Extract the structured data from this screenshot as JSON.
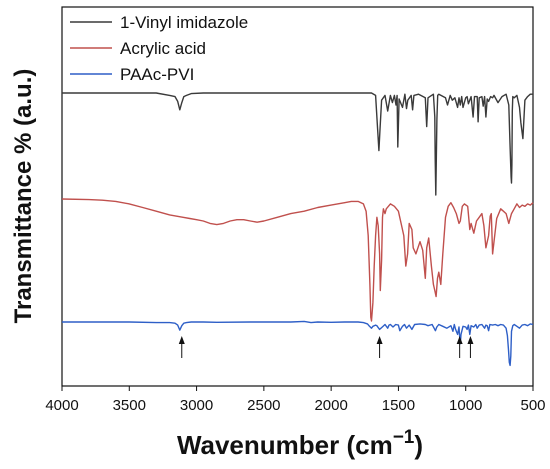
{
  "chart_data": {
    "type": "line",
    "title": "",
    "xlabel": "Wavenumber (cm",
    "xlabel_superscript": "−1",
    "xlabel_close": ")",
    "ylabel": "Transmittance % (a.u.)",
    "xlim": [
      4000,
      500
    ],
    "x_reversed": true,
    "x_ticks": [
      4000,
      3500,
      3000,
      2500,
      2000,
      1500,
      1000,
      500
    ],
    "y_ticks_shown": false,
    "grid": false,
    "legend_position": "top-left",
    "series": [
      {
        "name": "1-Vinyl imidazole",
        "color": "#3a3a3a",
        "baseline": 100,
        "x": [
          4000,
          3300,
          3200,
          3160,
          3140,
          3125,
          3110,
          3095,
          3075,
          3040,
          2950,
          2800,
          2200,
          2000,
          1800,
          1700,
          1670,
          1655,
          1645,
          1638,
          1625,
          1600,
          1580,
          1560,
          1545,
          1530,
          1518,
          1510,
          1505,
          1495,
          1470,
          1452,
          1440,
          1430,
          1405,
          1395,
          1385,
          1350,
          1300,
          1290,
          1280,
          1240,
          1230,
          1227,
          1222,
          1214,
          1208,
          1200,
          1150,
          1135,
          1115,
          1100,
          1080,
          1060,
          1050,
          1040,
          1030,
          1020,
          1000,
          990,
          980,
          960,
          945,
          935,
          915,
          908,
          900,
          880,
          870,
          860,
          850,
          840,
          830,
          815,
          800,
          790,
          760,
          730,
          700,
          680,
          670,
          663,
          660,
          657,
          654,
          650,
          640,
          620,
          600,
          590,
          575,
          560,
          540,
          520,
          500
        ],
        "y": [
          100,
          100,
          98,
          97,
          93,
          86,
          92,
          97,
          98,
          99.5,
          100,
          100,
          100,
          100,
          100,
          100,
          98,
          70,
          52,
          68,
          94,
          98,
          85,
          98,
          92,
          98,
          90,
          98,
          55,
          95,
          88,
          99,
          87,
          94,
          98,
          86,
          98,
          99,
          96,
          72,
          96,
          99,
          80,
          45,
          15,
          78,
          98,
          99,
          96,
          90,
          98,
          94,
          96,
          88,
          96,
          90,
          97,
          88,
          96,
          97,
          91,
          97,
          80,
          97,
          97,
          76,
          96,
          97,
          89,
          97,
          80,
          95,
          93,
          97,
          96,
          98,
          92,
          97,
          99,
          90,
          55,
          30,
          25,
          40,
          85,
          97,
          96,
          98,
          88,
          75,
          62,
          94,
          97,
          99,
          99
        ]
      },
      {
        "name": "Acrylic acid",
        "color": "#c0504d",
        "baseline": 100,
        "x": [
          4000,
          3800,
          3700,
          3600,
          3500,
          3400,
          3300,
          3200,
          3100,
          3050,
          3000,
          2950,
          2900,
          2850,
          2800,
          2750,
          2700,
          2650,
          2600,
          2550,
          2500,
          2400,
          2300,
          2200,
          2100,
          2000,
          1900,
          1850,
          1800,
          1760,
          1740,
          1725,
          1712,
          1705,
          1700,
          1690,
          1680,
          1670,
          1660,
          1650,
          1640,
          1635,
          1625,
          1618,
          1612,
          1600,
          1590,
          1560,
          1530,
          1500,
          1480,
          1460,
          1445,
          1432,
          1420,
          1400,
          1390,
          1370,
          1340,
          1320,
          1300,
          1290,
          1275,
          1255,
          1240,
          1230,
          1220,
          1210,
          1200,
          1185,
          1170,
          1150,
          1130,
          1110,
          1090,
          1070,
          1050,
          1040,
          1025,
          1010,
          985,
          970,
          960,
          940,
          920,
          900,
          880,
          865,
          850,
          830,
          818,
          810,
          800,
          790,
          770,
          740,
          720,
          700,
          680,
          660,
          640,
          620,
          600,
          580,
          560,
          540,
          520,
          500
        ],
        "y": [
          100,
          99.5,
          99,
          98,
          96,
          93,
          90,
          87,
          85,
          84,
          83,
          82,
          80,
          79,
          80,
          82,
          83,
          83,
          82,
          81,
          82,
          85,
          88,
          90,
          93,
          95,
          97,
          98,
          98,
          96,
          90,
          70,
          30,
          3,
          0,
          15,
          45,
          70,
          85,
          78,
          55,
          25,
          50,
          85,
          92,
          88,
          92,
          96,
          94,
          90,
          80,
          70,
          45,
          55,
          80,
          75,
          60,
          55,
          65,
          58,
          35,
          60,
          68,
          45,
          30,
          25,
          20,
          35,
          40,
          30,
          55,
          85,
          94,
          97,
          93,
          88,
          80,
          82,
          94,
          96,
          94,
          75,
          80,
          72,
          82,
          85,
          88,
          78,
          60,
          70,
          86,
          88,
          55,
          65,
          84,
          92,
          90,
          88,
          80,
          88,
          92,
          96,
          93,
          95,
          94,
          96,
          95,
          97
        ]
      },
      {
        "name": "PAAc-PVI",
        "color": "#2e5fc7",
        "baseline": 100,
        "x": [
          4000,
          3500,
          3300,
          3200,
          3160,
          3140,
          3125,
          3110,
          3095,
          3075,
          3040,
          2950,
          2850,
          2600,
          2300,
          2200,
          2150,
          2100,
          2000,
          1900,
          1800,
          1760,
          1730,
          1715,
          1700,
          1690,
          1670,
          1660,
          1650,
          1640,
          1620,
          1600,
          1580,
          1570,
          1560,
          1540,
          1520,
          1500,
          1490,
          1470,
          1455,
          1440,
          1420,
          1400,
          1380,
          1340,
          1300,
          1280,
          1250,
          1235,
          1225,
          1215,
          1200,
          1170,
          1140,
          1110,
          1095,
          1085,
          1075,
          1060,
          1050,
          1045,
          1040,
          1035,
          1020,
          1000,
          990,
          980,
          970,
          960,
          940,
          925,
          915,
          900,
          880,
          860,
          850,
          840,
          830,
          820,
          800,
          780,
          760,
          740,
          720,
          700,
          690,
          682,
          676,
          670,
          665,
          660,
          650,
          640,
          620,
          600,
          580,
          560,
          540,
          520,
          500
        ],
        "y": [
          100,
          100,
          99,
          99,
          98,
          95,
          87,
          94,
          98,
          99,
          100,
          100,
          99.5,
          100,
          100,
          101,
          99,
          100,
          99.5,
          100,
          100,
          99,
          97,
          93,
          90,
          93,
          95,
          94,
          91,
          88,
          92,
          96,
          90,
          95,
          96,
          92,
          96,
          95,
          86,
          93,
          96,
          90,
          95,
          88,
          96,
          97,
          96,
          94,
          96,
          90,
          86,
          92,
          96,
          93,
          90,
          94,
          85,
          96,
          88,
          80,
          92,
          75,
          65,
          80,
          93,
          92,
          88,
          95,
          80,
          94,
          92,
          96,
          90,
          95,
          96,
          90,
          95,
          94,
          86,
          96,
          95,
          96,
          94,
          96,
          95,
          90,
          78,
          55,
          35,
          30,
          45,
          85,
          94,
          96,
          93,
          90,
          95,
          96,
          94,
          97,
          96
        ]
      }
    ]
  },
  "annotations": {
    "arrows": [
      {
        "x": 3110,
        "series": "PAAc-PVI"
      },
      {
        "x": 1640,
        "series": "PAAc-PVI"
      },
      {
        "x": 1045,
        "series": "PAAc-PVI"
      },
      {
        "x": 965,
        "series": "PAAc-PVI"
      }
    ]
  }
}
